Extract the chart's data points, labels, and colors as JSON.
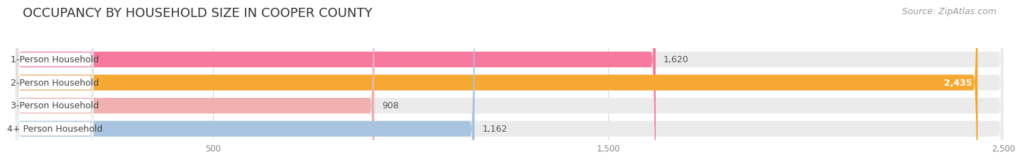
{
  "title": "OCCUPANCY BY HOUSEHOLD SIZE IN COOPER COUNTY",
  "source": "Source: ZipAtlas.com",
  "categories": [
    "1-Person Household",
    "2-Person Household",
    "3-Person Household",
    "4+ Person Household"
  ],
  "values": [
    1620,
    2435,
    908,
    1162
  ],
  "bar_colors": [
    "#f879a0",
    "#f5a832",
    "#f0b0b0",
    "#a8c4e0"
  ],
  "bar_bg_color": "#ebebeb",
  "label_box_color": "#ffffff",
  "value_labels": [
    "1,620",
    "2,435",
    "908",
    "1,162"
  ],
  "value_inside": [
    false,
    true,
    false,
    false
  ],
  "xlim_max": 2500,
  "xticks": [
    500,
    1500,
    2500
  ],
  "xtick_labels": [
    "500",
    "1,500",
    "2,500"
  ],
  "title_fontsize": 13,
  "source_fontsize": 9,
  "bar_label_fontsize": 9,
  "value_fontsize": 9,
  "background_color": "#ffffff"
}
